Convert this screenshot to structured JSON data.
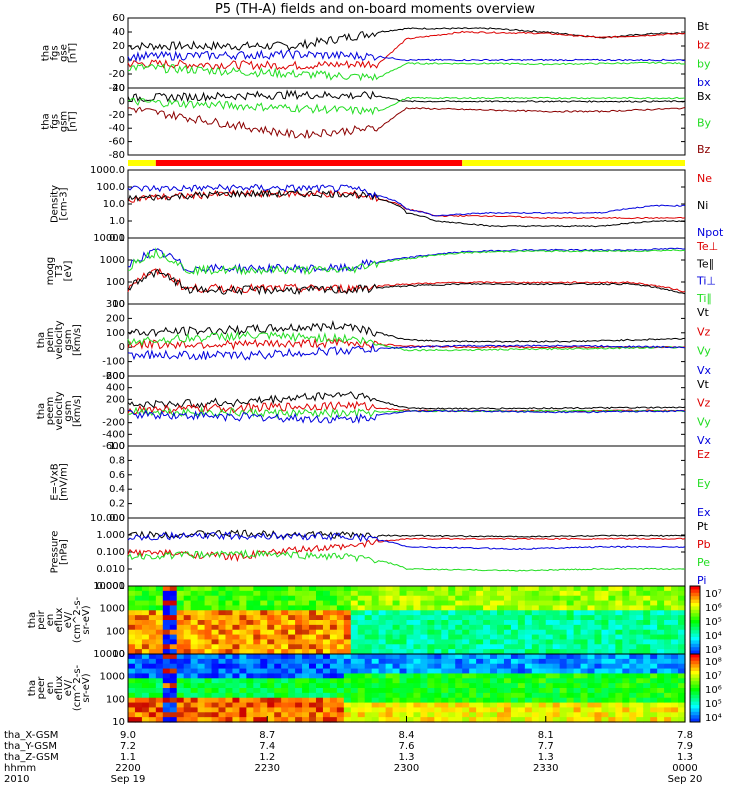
{
  "figure": {
    "title": "P5 (TH-A) fields and on-board moments overview"
  },
  "colors": {
    "black": "#000000",
    "red": "#dd0000",
    "darkred": "#8b0000",
    "green": "#22dd22",
    "blue": "#0000dd",
    "yellow": "#ffff00",
    "bar_red": "#ff0000"
  },
  "chart_data": [
    {
      "id": "fgs_gse",
      "type": "line",
      "ylabel": [
        "tha",
        "fgs",
        "gse",
        "[nT]"
      ],
      "ylim": [
        -40,
        60
      ],
      "ticks": [
        "60",
        "40",
        "20",
        "0",
        "-20",
        "-40"
      ],
      "series": [
        {
          "name": "Bt",
          "color": "black",
          "x": [
            0,
            0.3,
            0.45,
            0.5,
            0.55,
            0.6,
            0.65,
            0.75,
            0.85,
            0.95,
            1.0
          ],
          "y": [
            20,
            20,
            40,
            45,
            45,
            45,
            45,
            40,
            32,
            38,
            38
          ]
        },
        {
          "name": "bz",
          "color": "red",
          "x": [
            0,
            0.3,
            0.45,
            0.5,
            0.6,
            0.75,
            0.85,
            0.95,
            1.0
          ],
          "y": [
            -5,
            -8,
            -5,
            30,
            40,
            38,
            32,
            36,
            38
          ]
        },
        {
          "name": "by",
          "color": "green",
          "x": [
            0,
            0.3,
            0.45,
            0.5,
            0.65,
            0.75,
            0.85,
            0.95,
            1.0
          ],
          "y": [
            -10,
            -20,
            -25,
            -5,
            -5,
            -6,
            -5,
            -4,
            -5
          ]
        },
        {
          "name": "bx",
          "color": "blue",
          "x": [
            0,
            0.3,
            0.45,
            0.5,
            0.75,
            0.85,
            0.95,
            1.0
          ],
          "y": [
            5,
            8,
            5,
            0,
            0,
            0,
            0,
            0
          ]
        }
      ]
    },
    {
      "id": "fgs_gsm",
      "type": "line",
      "ylabel": [
        "tha",
        "fgs",
        "gsm",
        "[nT]"
      ],
      "ylim": [
        -80,
        20
      ],
      "ticks": [
        "20",
        "0",
        "-20",
        "-40",
        "-60",
        "-80"
      ],
      "series": [
        {
          "name": "Bx",
          "color": "black",
          "x": [
            0,
            0.3,
            0.45,
            0.5,
            1.0
          ],
          "y": [
            5,
            10,
            8,
            0,
            0
          ]
        },
        {
          "name": "By",
          "color": "green",
          "x": [
            0,
            0.3,
            0.45,
            0.5,
            0.75,
            1.0
          ],
          "y": [
            0,
            -10,
            -15,
            5,
            5,
            5
          ]
        },
        {
          "name": "Bz",
          "color": "darkred",
          "x": [
            0,
            0.3,
            0.45,
            0.5,
            0.75,
            0.85,
            1.0
          ],
          "y": [
            -10,
            -50,
            -40,
            -10,
            -15,
            -15,
            -10
          ]
        }
      ]
    },
    {
      "id": "density",
      "type": "line",
      "log": true,
      "ylabel": [
        "Density",
        "[cm-3]"
      ],
      "ylim": [
        0.1,
        1000
      ],
      "ticks": [
        "1000.0",
        "100.0",
        "10.0",
        "1.0",
        "0.1"
      ],
      "series": [
        {
          "name": "Ne",
          "color": "red",
          "x": [
            0,
            0.2,
            0.4,
            0.45,
            0.5,
            0.55,
            0.65,
            0.75,
            0.85,
            0.95,
            1.0
          ],
          "y": [
            20,
            40,
            40,
            20,
            5,
            2,
            2,
            1.5,
            1.5,
            1.5,
            1.5
          ]
        },
        {
          "name": "Ni",
          "color": "black",
          "x": [
            0,
            0.2,
            0.4,
            0.45,
            0.5,
            0.55,
            0.65,
            0.75,
            0.85,
            0.95,
            1.0
          ],
          "y": [
            20,
            40,
            40,
            20,
            3,
            1,
            0.5,
            0.5,
            0.5,
            1,
            1
          ]
        },
        {
          "name": "Npot",
          "color": "blue",
          "x": [
            0,
            0.2,
            0.4,
            0.45,
            0.5,
            0.55,
            0.65,
            0.75,
            0.85,
            0.95,
            1.0
          ],
          "y": [
            80,
            90,
            80,
            30,
            5,
            2,
            3,
            3,
            3,
            8,
            8
          ]
        }
      ]
    },
    {
      "id": "temperature",
      "type": "line",
      "log": true,
      "ylabel": [
        "moqg",
        "T3",
        "[eV]"
      ],
      "ylim": [
        5,
        10000
      ],
      "ticks": [
        "10000",
        "1000",
        "100",
        "10"
      ],
      "series": [
        {
          "name": "Te⊥",
          "color": "red",
          "x": [
            0,
            0.05,
            0.1,
            0.2,
            0.4,
            0.5,
            0.6,
            0.7,
            0.8,
            0.9,
            1.0
          ],
          "y": [
            30,
            200,
            30,
            30,
            30,
            50,
            60,
            60,
            60,
            60,
            20
          ]
        },
        {
          "name": "Te∥",
          "color": "black",
          "x": [
            0,
            0.05,
            0.1,
            0.2,
            0.4,
            0.5,
            0.6,
            0.7,
            0.8,
            0.9,
            1.0
          ],
          "y": [
            25,
            180,
            25,
            25,
            25,
            40,
            50,
            50,
            50,
            50,
            15
          ]
        },
        {
          "name": "Ti⊥",
          "color": "blue",
          "x": [
            0,
            0.05,
            0.1,
            0.2,
            0.4,
            0.5,
            0.6,
            0.7,
            0.8,
            0.9,
            1.0
          ],
          "y": [
            300,
            2000,
            300,
            300,
            300,
            1000,
            2000,
            2500,
            2500,
            2500,
            3000
          ]
        },
        {
          "name": "Ti∥",
          "color": "green",
          "x": [
            0,
            0.05,
            0.1,
            0.2,
            0.4,
            0.5,
            0.6,
            0.7,
            0.8,
            0.9,
            1.0
          ],
          "y": [
            250,
            1800,
            250,
            250,
            250,
            900,
            1800,
            2200,
            2200,
            2200,
            2500
          ]
        }
      ]
    },
    {
      "id": "peim_velocity",
      "type": "line",
      "ylabel": [
        "tha",
        "peim",
        "velocity",
        "gsm",
        "[km/s]"
      ],
      "ylim": [
        -200,
        300
      ],
      "ticks": [
        "300",
        "200",
        "100",
        "0",
        "-100",
        "-200"
      ],
      "series": [
        {
          "name": "Vt",
          "color": "black",
          "x": [
            0,
            0.2,
            0.4,
            0.5,
            0.6,
            0.8,
            1.0
          ],
          "y": [
            100,
            120,
            150,
            50,
            40,
            40,
            60
          ]
        },
        {
          "name": "Vz",
          "color": "red",
          "x": [
            0,
            0.2,
            0.4,
            0.5,
            0.6,
            0.8,
            1.0
          ],
          "y": [
            20,
            20,
            30,
            10,
            0,
            0,
            0
          ]
        },
        {
          "name": "Vy",
          "color": "green",
          "x": [
            0,
            0.2,
            0.4,
            0.5,
            0.6,
            0.8,
            1.0
          ],
          "y": [
            40,
            80,
            60,
            -20,
            -20,
            -10,
            0
          ]
        },
        {
          "name": "Vx",
          "color": "blue",
          "x": [
            0,
            0.2,
            0.4,
            0.5,
            0.6,
            0.8,
            1.0
          ],
          "y": [
            -50,
            -60,
            -20,
            0,
            10,
            10,
            0
          ]
        }
      ]
    },
    {
      "id": "peem_velocity",
      "type": "line",
      "ylabel": [
        "tha",
        "peem",
        "velocity",
        "gsm",
        "[km/s]"
      ],
      "ylim": [
        -600,
        600
      ],
      "ticks": [
        "600",
        "400",
        "200",
        "0",
        "-200",
        "-400",
        "-600"
      ],
      "series": [
        {
          "name": "Vt",
          "color": "black",
          "x": [
            0,
            0.2,
            0.4,
            0.5,
            0.6,
            0.8,
            1.0
          ],
          "y": [
            100,
            150,
            300,
            50,
            40,
            50,
            60
          ]
        },
        {
          "name": "Vz",
          "color": "red",
          "x": [
            0,
            0.2,
            0.4,
            0.5,
            0.6,
            0.8,
            1.0
          ],
          "y": [
            20,
            50,
            100,
            10,
            0,
            0,
            10
          ]
        },
        {
          "name": "Vy",
          "color": "green",
          "x": [
            0,
            0.2,
            0.4,
            0.5,
            0.6,
            0.8,
            1.0
          ],
          "y": [
            0,
            -30,
            -50,
            0,
            0,
            0,
            0
          ]
        },
        {
          "name": "Vx",
          "color": "blue",
          "x": [
            0,
            0.2,
            0.4,
            0.5,
            0.6,
            0.8,
            1.0
          ],
          "y": [
            -50,
            -100,
            -150,
            0,
            0,
            -20,
            0
          ]
        }
      ]
    },
    {
      "id": "efield",
      "type": "line",
      "ylabel": [
        "E=-VxB",
        "[mV/m]"
      ],
      "ylim": [
        0,
        1
      ],
      "ticks": [
        "1.0",
        "0.8",
        "0.6",
        "0.4",
        "0.2",
        "0.0"
      ],
      "series": [
        {
          "name": "Ez",
          "color": "red",
          "x": [],
          "y": []
        },
        {
          "name": "Ey",
          "color": "green",
          "x": [],
          "y": []
        },
        {
          "name": "Ex",
          "color": "blue",
          "x": [],
          "y": []
        }
      ]
    },
    {
      "id": "pressure",
      "type": "line",
      "log": true,
      "ylabel": [
        "Pressure",
        "[nPa]"
      ],
      "ylim": [
        0.001,
        10
      ],
      "ticks": [
        "10.000",
        "1.000",
        "0.100",
        "0.010",
        "0.001"
      ],
      "series": [
        {
          "name": "Pt",
          "color": "black",
          "x": [
            0,
            0.2,
            0.4,
            0.5,
            0.7,
            0.85,
            1.0
          ],
          "y": [
            1,
            1.2,
            1,
            0.9,
            0.8,
            0.9,
            0.9
          ]
        },
        {
          "name": "Pb",
          "color": "red",
          "x": [
            0,
            0.2,
            0.4,
            0.5,
            0.7,
            0.85,
            1.0
          ],
          "y": [
            0.1,
            0.05,
            0.2,
            0.6,
            0.6,
            0.6,
            0.6
          ]
        },
        {
          "name": "Pe",
          "color": "green",
          "x": [
            0,
            0.2,
            0.4,
            0.5,
            0.7,
            0.85,
            1.0
          ],
          "y": [
            0.05,
            0.08,
            0.05,
            0.01,
            0.008,
            0.01,
            0.01
          ]
        },
        {
          "name": "Pi",
          "color": "blue",
          "x": [
            0,
            0.2,
            0.4,
            0.5,
            0.7,
            0.85,
            1.0
          ],
          "y": [
            0.8,
            0.9,
            0.8,
            0.2,
            0.15,
            0.2,
            0.2
          ]
        }
      ]
    },
    {
      "id": "peir_spectrogram",
      "type": "heatmap",
      "ylabel": [
        "tha",
        "peir",
        "en",
        "eflux",
        "eV/",
        "(cm^2-s-",
        "sr-eV)"
      ],
      "ylim": [
        10,
        10000
      ],
      "ticks": [
        "10000",
        "1000",
        "100",
        "10"
      ],
      "colorbar": [
        "10⁷",
        "10⁶",
        "10⁵",
        "10⁴",
        "10³"
      ]
    },
    {
      "id": "peer_spectrogram",
      "type": "heatmap",
      "ylabel": [
        "tha",
        "peer",
        "en",
        "eflux",
        "eV/",
        "(cm^2-s-",
        "sr-eV)"
      ],
      "ylim": [
        10,
        10000
      ],
      "ticks": [
        "10000",
        "1000",
        "100",
        "10"
      ],
      "colorbar": [
        "10⁸",
        "10⁷",
        "10⁶",
        "10⁵",
        "10⁴"
      ]
    }
  ],
  "status_bar": {
    "segments": [
      {
        "color": "yellow",
        "from": 0.0,
        "to": 0.05
      },
      {
        "color": "bar_red",
        "from": 0.05,
        "to": 0.6
      },
      {
        "color": "yellow",
        "from": 0.6,
        "to": 1.0
      }
    ]
  },
  "x_axis": {
    "row_labels": [
      "tha_X-GSM",
      "tha_Y-GSM",
      "tha_Z-GSM",
      "hhmm",
      "2010"
    ],
    "ticks": [
      {
        "x": 0.0,
        "vals": [
          "9.0",
          "7.2",
          "1.1",
          "2200",
          "Sep 19"
        ]
      },
      {
        "x": 0.25,
        "vals": [
          "8.7",
          "7.4",
          "1.2",
          "2230",
          ""
        ]
      },
      {
        "x": 0.5,
        "vals": [
          "8.4",
          "7.6",
          "1.3",
          "2300",
          ""
        ]
      },
      {
        "x": 0.75,
        "vals": [
          "8.1",
          "7.7",
          "1.3",
          "2330",
          ""
        ]
      },
      {
        "x": 1.0,
        "vals": [
          "7.8",
          "7.9",
          "1.3",
          "0000",
          "Sep 20"
        ]
      }
    ]
  }
}
